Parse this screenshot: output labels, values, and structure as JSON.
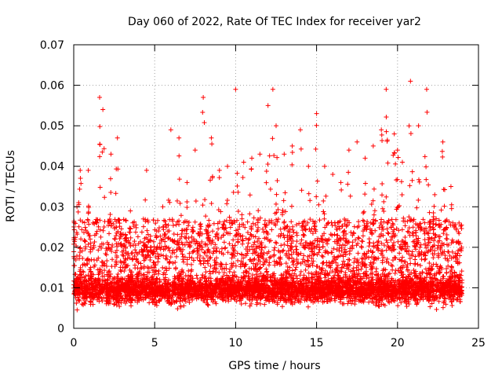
{
  "chart_data": {
    "type": "scatter",
    "title": "Day 060 of 2022, Rate Of TEC Index for receiver yar2",
    "xlabel": "GPS time / hours",
    "ylabel": "ROTI / TECUs",
    "xlim": [
      0,
      25
    ],
    "ylim": [
      0,
      0.07
    ],
    "x_ticks": [
      "0",
      "5",
      "10",
      "15",
      "20",
      "25"
    ],
    "y_ticks": [
      "0",
      "0.01",
      "0.02",
      "0.03",
      "0.04",
      "0.05",
      "0.06",
      "0.07"
    ],
    "grid": true,
    "marker": "+",
    "marker_color": "#ff0000",
    "series": [
      {
        "x_range": [
          0,
          24
        ],
        "baseline_range": [
          0.005,
          0.015
        ],
        "approx_point_count": 6000,
        "peaks": [
          {
            "x": 0.2,
            "y": 0.03
          },
          {
            "x": 0.4,
            "y": 0.039
          },
          {
            "x": 0.9,
            "y": 0.039
          },
          {
            "x": 1.6,
            "y": 0.057
          },
          {
            "x": 1.8,
            "y": 0.054
          },
          {
            "x": 2.3,
            "y": 0.043
          },
          {
            "x": 2.7,
            "y": 0.047
          },
          {
            "x": 3.5,
            "y": 0.029
          },
          {
            "x": 4.3,
            "y": 0.027
          },
          {
            "x": 4.5,
            "y": 0.039
          },
          {
            "x": 5.5,
            "y": 0.03
          },
          {
            "x": 6.0,
            "y": 0.049
          },
          {
            "x": 6.5,
            "y": 0.047
          },
          {
            "x": 7.0,
            "y": 0.036
          },
          {
            "x": 7.5,
            "y": 0.044
          },
          {
            "x": 8.0,
            "y": 0.057
          },
          {
            "x": 8.5,
            "y": 0.047
          },
          {
            "x": 9.0,
            "y": 0.039
          },
          {
            "x": 9.5,
            "y": 0.04
          },
          {
            "x": 10.0,
            "y": 0.059
          },
          {
            "x": 10.5,
            "y": 0.041
          },
          {
            "x": 11.0,
            "y": 0.042
          },
          {
            "x": 11.5,
            "y": 0.043
          },
          {
            "x": 12.0,
            "y": 0.055
          },
          {
            "x": 12.3,
            "y": 0.059
          },
          {
            "x": 12.5,
            "y": 0.05
          },
          {
            "x": 13.0,
            "y": 0.043
          },
          {
            "x": 13.5,
            "y": 0.045
          },
          {
            "x": 14.0,
            "y": 0.049
          },
          {
            "x": 14.5,
            "y": 0.04
          },
          {
            "x": 15.0,
            "y": 0.053
          },
          {
            "x": 15.5,
            "y": 0.04
          },
          {
            "x": 16.0,
            "y": 0.038
          },
          {
            "x": 16.5,
            "y": 0.036
          },
          {
            "x": 17.0,
            "y": 0.044
          },
          {
            "x": 17.5,
            "y": 0.046
          },
          {
            "x": 18.0,
            "y": 0.042
          },
          {
            "x": 18.5,
            "y": 0.045
          },
          {
            "x": 19.0,
            "y": 0.049
          },
          {
            "x": 19.3,
            "y": 0.059
          },
          {
            "x": 19.8,
            "y": 0.048
          },
          {
            "x": 20.0,
            "y": 0.044
          },
          {
            "x": 20.3,
            "y": 0.041
          },
          {
            "x": 20.8,
            "y": 0.061
          },
          {
            "x": 21.3,
            "y": 0.05
          },
          {
            "x": 21.8,
            "y": 0.059
          },
          {
            "x": 22.3,
            "y": 0.033
          },
          {
            "x": 22.8,
            "y": 0.046
          },
          {
            "x": 23.3,
            "y": 0.035
          },
          {
            "x": 23.8,
            "y": 0.026
          }
        ]
      }
    ]
  }
}
